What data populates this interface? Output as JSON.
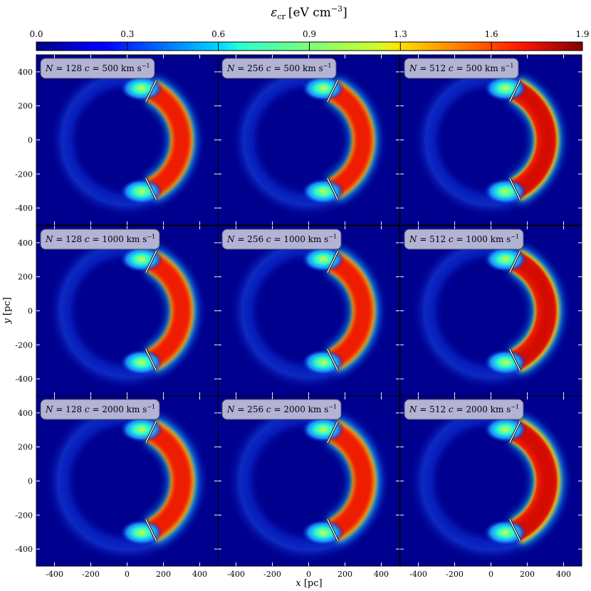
{
  "chart_data": {
    "type": "heatmap",
    "colorbar": {
      "label": "ε",
      "label_sub": "cr",
      "label_unit": "[eV cm",
      "label_exp": "−3",
      "label_close": "]",
      "ticks": [
        "0.0",
        "0.3",
        "0.6",
        "0.9",
        "1.3",
        "1.6",
        "1.9"
      ],
      "range": [
        0.0,
        1.9
      ],
      "colormap": "jet"
    },
    "xlabel": "x [pc]",
    "ylabel": "y [pc]",
    "xlim": [
      -500,
      500
    ],
    "ylim": [
      -500,
      500
    ],
    "xticks": [
      -400,
      -200,
      0,
      200,
      400
    ],
    "yticks": [
      -400,
      -200,
      0,
      200,
      400
    ],
    "panels": [
      {
        "N": "128",
        "c": "500",
        "label": "N = 128 c = 500 km s⁻¹"
      },
      {
        "N": "256",
        "c": "500",
        "label": "N = 256 c = 500 km s⁻¹"
      },
      {
        "N": "512",
        "c": "500",
        "label": "N = 512 c = 500 km s⁻¹"
      },
      {
        "N": "128",
        "c": "1000",
        "label": "N = 128 c = 1000 km s⁻¹"
      },
      {
        "N": "256",
        "c": "1000",
        "label": "N = 256 c = 1000 km s⁻¹"
      },
      {
        "N": "512",
        "c": "1000",
        "label": "N = 512 c = 1000 km s⁻¹"
      },
      {
        "N": "128",
        "c": "2000",
        "label": "N = 128 c = 2000 km s⁻¹"
      },
      {
        "N": "256",
        "c": "2000",
        "label": "N = 256 c = 2000 km s⁻¹"
      },
      {
        "N": "512",
        "c": "2000",
        "label": "N = 512 c = 2000 km s⁻¹"
      }
    ],
    "shell": {
      "inner_radius": 250,
      "outer_radius": 350,
      "peak_value": 1.85,
      "background_value": 0.0,
      "boundary_angles_deg": [
        64,
        -64
      ]
    },
    "colors": {
      "background": "#00008f",
      "panel_border": "#000000",
      "label_box_fill": "#b3b3d6",
      "label_box_stroke": "#555555",
      "boundary_line": "#ffffff"
    }
  }
}
